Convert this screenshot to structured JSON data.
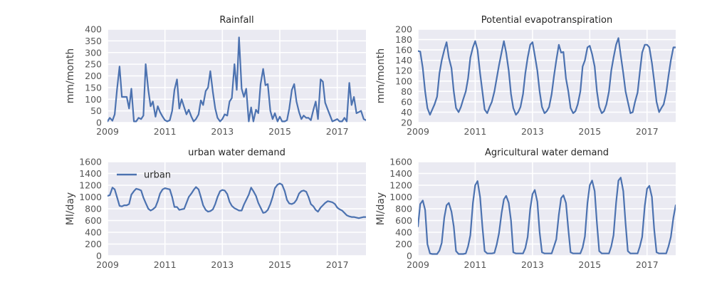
{
  "chart_data": [
    {
      "type": "line",
      "title": "Rainfall",
      "xlabel": "",
      "ylabel": "mm/month",
      "xlim": [
        2009.0,
        2018.0
      ],
      "ylim": [
        0,
        400
      ],
      "yticks": [
        0,
        50,
        100,
        150,
        200,
        250,
        300,
        350,
        400
      ],
      "xticks": [
        2009,
        2011,
        2013,
        2015,
        2017
      ],
      "grid": true,
      "legend": null,
      "color": "#4c72b0",
      "series": [
        {
          "x": [
            2009.0,
            2009.08,
            2009.17,
            2009.25,
            2009.33,
            2009.42,
            2009.5,
            2009.58,
            2009.67,
            2009.75,
            2009.83,
            2009.92,
            2010.0,
            2010.08,
            2010.17,
            2010.25,
            2010.33,
            2010.42,
            2010.5,
            2010.58,
            2010.67,
            2010.75,
            2010.83,
            2010.92,
            2011.0,
            2011.08,
            2011.17,
            2011.25,
            2011.33,
            2011.42,
            2011.5,
            2011.58,
            2011.67,
            2011.75,
            2011.83,
            2011.92,
            2012.0,
            2012.08,
            2012.17,
            2012.25,
            2012.33,
            2012.42,
            2012.5,
            2012.58,
            2012.67,
            2012.75,
            2012.83,
            2012.92,
            2013.0,
            2013.08,
            2013.17,
            2013.25,
            2013.33,
            2013.42,
            2013.5,
            2013.58,
            2013.67,
            2013.75,
            2013.83,
            2013.92,
            2014.0,
            2014.08,
            2014.17,
            2014.25,
            2014.33,
            2014.42,
            2014.5,
            2014.58,
            2014.67,
            2014.75,
            2014.83,
            2014.92,
            2015.0,
            2015.08,
            2015.17,
            2015.25,
            2015.33,
            2015.42,
            2015.5,
            2015.58,
            2015.67,
            2015.75,
            2015.83,
            2015.92,
            2016.0,
            2016.08,
            2016.17,
            2016.25,
            2016.33,
            2016.42,
            2016.5,
            2016.58,
            2016.67,
            2016.75,
            2016.83,
            2016.92,
            2017.0,
            2017.08,
            2017.17,
            2017.25,
            2017.33,
            2017.42,
            2017.5,
            2017.58,
            2017.67,
            2017.75,
            2017.83,
            2017.92,
            2018.0
          ],
          "y": [
            5,
            20,
            8,
            35,
            140,
            240,
            110,
            110,
            110,
            60,
            145,
            5,
            5,
            20,
            15,
            30,
            250,
            140,
            70,
            90,
            25,
            70,
            45,
            25,
            10,
            5,
            10,
            50,
            140,
            185,
            60,
            100,
            65,
            35,
            55,
            25,
            5,
            15,
            35,
            95,
            75,
            135,
            150,
            220,
            130,
            60,
            20,
            5,
            15,
            35,
            30,
            90,
            105,
            250,
            140,
            365,
            145,
            110,
            145,
            5,
            65,
            5,
            55,
            40,
            165,
            230,
            160,
            165,
            50,
            15,
            40,
            5,
            25,
            5,
            5,
            10,
            60,
            140,
            165,
            90,
            45,
            15,
            30,
            20,
            20,
            10,
            55,
            90,
            15,
            185,
            175,
            85,
            55,
            30,
            5,
            10,
            15,
            5,
            5,
            20,
            5,
            170,
            75,
            110,
            40,
            45,
            50,
            15,
            10
          ]
        }
      ]
    },
    {
      "type": "line",
      "title": "Potential evapotranspiration",
      "xlabel": "",
      "ylabel": "mm/month",
      "xlim": [
        2009.0,
        2018.0
      ],
      "ylim": [
        20,
        200
      ],
      "yticks": [
        20,
        40,
        60,
        80,
        100,
        120,
        140,
        160,
        180,
        200
      ],
      "xticks": [
        2009,
        2011,
        2013,
        2015,
        2017
      ],
      "grid": true,
      "legend": null,
      "color": "#4c72b0",
      "series": [
        {
          "x": [
            2009.0,
            2009.08,
            2009.17,
            2009.25,
            2009.33,
            2009.42,
            2009.5,
            2009.58,
            2009.67,
            2009.75,
            2009.83,
            2009.92,
            2010.0,
            2010.08,
            2010.17,
            2010.25,
            2010.33,
            2010.42,
            2010.5,
            2010.58,
            2010.67,
            2010.75,
            2010.83,
            2010.92,
            2011.0,
            2011.08,
            2011.17,
            2011.25,
            2011.33,
            2011.42,
            2011.5,
            2011.58,
            2011.67,
            2011.75,
            2011.83,
            2011.92,
            2012.0,
            2012.08,
            2012.17,
            2012.25,
            2012.33,
            2012.42,
            2012.5,
            2012.58,
            2012.67,
            2012.75,
            2012.83,
            2012.92,
            2013.0,
            2013.08,
            2013.17,
            2013.25,
            2013.33,
            2013.42,
            2013.5,
            2013.58,
            2013.67,
            2013.75,
            2013.83,
            2013.92,
            2014.0,
            2014.08,
            2014.17,
            2014.25,
            2014.33,
            2014.42,
            2014.5,
            2014.58,
            2014.67,
            2014.75,
            2014.83,
            2014.92,
            2015.0,
            2015.08,
            2015.17,
            2015.25,
            2015.33,
            2015.42,
            2015.5,
            2015.58,
            2015.67,
            2015.75,
            2015.83,
            2015.92,
            2016.0,
            2016.08,
            2016.17,
            2016.25,
            2016.33,
            2016.42,
            2016.5,
            2016.58,
            2016.67,
            2016.75,
            2016.83,
            2016.92,
            2017.0,
            2017.08,
            2017.17,
            2017.25,
            2017.33,
            2017.42,
            2017.5,
            2017.58,
            2017.67,
            2017.75,
            2017.83,
            2017.92,
            2018.0
          ],
          "y": [
            158,
            157,
            125,
            80,
            48,
            35,
            45,
            55,
            70,
            115,
            140,
            160,
            175,
            145,
            125,
            80,
            48,
            40,
            50,
            65,
            80,
            105,
            145,
            165,
            177,
            160,
            115,
            80,
            45,
            38,
            50,
            60,
            80,
            105,
            130,
            155,
            177,
            155,
            120,
            75,
            48,
            35,
            40,
            50,
            75,
            115,
            145,
            170,
            175,
            150,
            120,
            80,
            50,
            38,
            42,
            50,
            75,
            110,
            140,
            170,
            155,
            156,
            105,
            80,
            48,
            38,
            42,
            55,
            80,
            128,
            140,
            165,
            168,
            152,
            128,
            80,
            50,
            38,
            42,
            55,
            80,
            120,
            145,
            170,
            183,
            150,
            115,
            80,
            60,
            38,
            40,
            60,
            78,
            118,
            155,
            170,
            170,
            165,
            135,
            100,
            60,
            40,
            48,
            55,
            78,
            110,
            140,
            165,
            165
          ]
        }
      ]
    },
    {
      "type": "line",
      "title": "urban water demand",
      "xlabel": "",
      "ylabel": "Ml/day",
      "xlim": [
        2009.0,
        2018.0
      ],
      "ylim": [
        0,
        1600
      ],
      "yticks": [
        0,
        200,
        400,
        600,
        800,
        1000,
        1200,
        1400,
        1600
      ],
      "xticks": [
        2009,
        2011,
        2013,
        2015,
        2017
      ],
      "grid": true,
      "legend": "upper-left",
      "color": "#4c72b0",
      "series": [
        {
          "name": "urban",
          "x": [
            2009.0,
            2009.08,
            2009.17,
            2009.25,
            2009.33,
            2009.42,
            2009.5,
            2009.58,
            2009.67,
            2009.75,
            2009.83,
            2009.92,
            2010.0,
            2010.08,
            2010.17,
            2010.25,
            2010.33,
            2010.42,
            2010.5,
            2010.58,
            2010.67,
            2010.75,
            2010.83,
            2010.92,
            2011.0,
            2011.08,
            2011.17,
            2011.25,
            2011.33,
            2011.42,
            2011.5,
            2011.58,
            2011.67,
            2011.75,
            2011.83,
            2011.92,
            2012.0,
            2012.08,
            2012.17,
            2012.25,
            2012.33,
            2012.42,
            2012.5,
            2012.58,
            2012.67,
            2012.75,
            2012.83,
            2012.92,
            2013.0,
            2013.08,
            2013.17,
            2013.25,
            2013.33,
            2013.42,
            2013.5,
            2013.58,
            2013.67,
            2013.75,
            2013.83,
            2013.92,
            2014.0,
            2014.08,
            2014.17,
            2014.25,
            2014.33,
            2014.42,
            2014.5,
            2014.58,
            2014.67,
            2014.75,
            2014.83,
            2014.92,
            2015.0,
            2015.08,
            2015.17,
            2015.25,
            2015.33,
            2015.42,
            2015.5,
            2015.58,
            2015.67,
            2015.75,
            2015.83,
            2015.92,
            2016.0,
            2016.08,
            2016.17,
            2016.25,
            2016.33,
            2016.42,
            2016.5,
            2016.58,
            2016.67,
            2016.75,
            2016.83,
            2016.92,
            2017.0,
            2017.08,
            2017.17,
            2017.25,
            2017.33,
            2017.42,
            2017.5,
            2017.58,
            2017.67,
            2017.75,
            2017.83,
            2017.92,
            2018.0
          ],
          "y": [
            1020,
            1030,
            1160,
            1130,
            1000,
            850,
            840,
            860,
            860,
            880,
            1040,
            1100,
            1140,
            1130,
            1110,
            990,
            900,
            800,
            770,
            790,
            830,
            930,
            1060,
            1130,
            1150,
            1140,
            1130,
            1000,
            830,
            830,
            780,
            790,
            800,
            900,
            1000,
            1060,
            1120,
            1170,
            1130,
            1000,
            860,
            780,
            750,
            760,
            790,
            880,
            1000,
            1100,
            1120,
            1110,
            1050,
            920,
            850,
            810,
            790,
            770,
            770,
            870,
            950,
            1040,
            1160,
            1100,
            1020,
            900,
            820,
            730,
            740,
            780,
            880,
            1000,
            1150,
            1210,
            1230,
            1210,
            1100,
            950,
            890,
            880,
            900,
            950,
            1060,
            1100,
            1110,
            1090,
            1000,
            880,
            840,
            780,
            750,
            820,
            860,
            900,
            930,
            920,
            910,
            880,
            820,
            790,
            770,
            730,
            690,
            670,
            660,
            660,
            650,
            640,
            650,
            660,
            660
          ]
        }
      ]
    },
    {
      "type": "line",
      "title": "Agricultural water demand",
      "xlabel": "",
      "ylabel": "Ml/day",
      "xlim": [
        2009.0,
        2018.0
      ],
      "ylim": [
        0,
        1600
      ],
      "yticks": [
        0,
        200,
        400,
        600,
        800,
        1000,
        1200,
        1400,
        1600
      ],
      "xticks": [
        2009,
        2011,
        2013,
        2015,
        2017
      ],
      "grid": true,
      "legend": null,
      "color": "#4c72b0",
      "series": [
        {
          "x": [
            2009.0,
            2009.08,
            2009.17,
            2009.25,
            2009.33,
            2009.42,
            2009.5,
            2009.58,
            2009.67,
            2009.75,
            2009.83,
            2009.92,
            2010.0,
            2010.08,
            2010.17,
            2010.25,
            2010.33,
            2010.42,
            2010.5,
            2010.58,
            2010.67,
            2010.75,
            2010.83,
            2010.92,
            2011.0,
            2011.08,
            2011.17,
            2011.25,
            2011.33,
            2011.42,
            2011.5,
            2011.58,
            2011.67,
            2011.75,
            2011.83,
            2011.92,
            2012.0,
            2012.08,
            2012.17,
            2012.25,
            2012.33,
            2012.42,
            2012.5,
            2012.58,
            2012.67,
            2012.75,
            2012.83,
            2012.92,
            2013.0,
            2013.08,
            2013.17,
            2013.25,
            2013.33,
            2013.42,
            2013.5,
            2013.58,
            2013.67,
            2013.75,
            2013.83,
            2013.92,
            2014.0,
            2014.08,
            2014.17,
            2014.25,
            2014.33,
            2014.42,
            2014.5,
            2014.58,
            2014.67,
            2014.75,
            2014.83,
            2014.92,
            2015.0,
            2015.08,
            2015.17,
            2015.25,
            2015.33,
            2015.42,
            2015.5,
            2015.58,
            2015.67,
            2015.75,
            2015.83,
            2015.92,
            2016.0,
            2016.08,
            2016.17,
            2016.25,
            2016.33,
            2016.42,
            2016.5,
            2016.58,
            2016.67,
            2016.75,
            2016.83,
            2016.92,
            2017.0,
            2017.08,
            2017.17,
            2017.25,
            2017.33,
            2017.42,
            2017.5,
            2017.58,
            2017.67,
            2017.75,
            2017.83,
            2017.92,
            2018.0
          ],
          "y": [
            500,
            880,
            940,
            780,
            200,
            40,
            30,
            30,
            30,
            90,
            220,
            650,
            860,
            900,
            750,
            500,
            80,
            30,
            30,
            30,
            40,
            160,
            350,
            900,
            1200,
            1270,
            1000,
            500,
            80,
            40,
            40,
            40,
            50,
            190,
            380,
            720,
            960,
            1020,
            900,
            600,
            60,
            40,
            40,
            40,
            40,
            130,
            320,
            800,
            1050,
            1120,
            920,
            400,
            60,
            40,
            40,
            40,
            40,
            160,
            280,
            700,
            980,
            1030,
            900,
            450,
            60,
            40,
            40,
            40,
            40,
            140,
            330,
            900,
            1200,
            1280,
            1100,
            550,
            80,
            40,
            40,
            40,
            40,
            160,
            350,
            900,
            1280,
            1330,
            1100,
            550,
            80,
            40,
            40,
            40,
            40,
            160,
            320,
            850,
            1140,
            1190,
            1000,
            450,
            60,
            40,
            40,
            40,
            40,
            160,
            320,
            650,
            860
          ]
        }
      ]
    }
  ]
}
